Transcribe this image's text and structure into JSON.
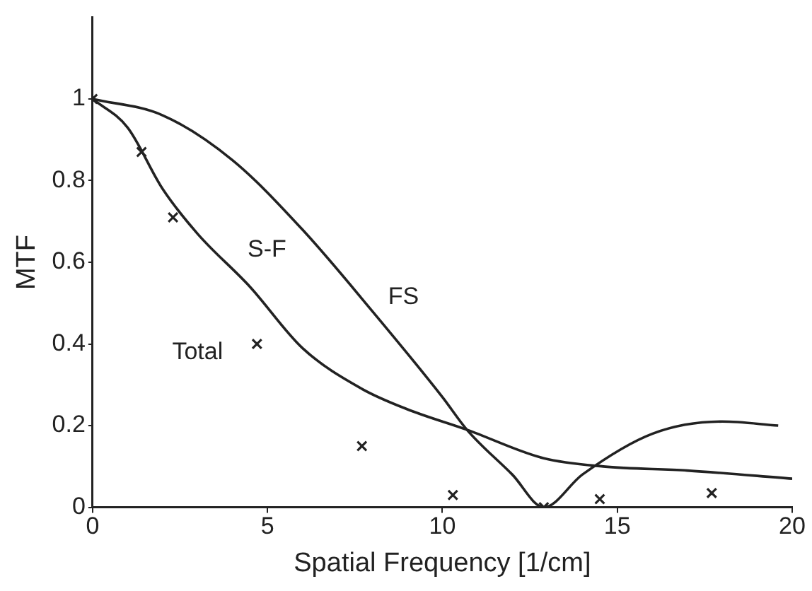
{
  "chart_data": {
    "type": "line",
    "xlabel": "Spatial Frequency [1/cm]",
    "ylabel": "MTF",
    "xlim": [
      0,
      20
    ],
    "xticks": [
      0,
      5,
      10,
      15,
      20
    ],
    "ylim": [
      0,
      1.2
    ],
    "yticks": [
      0,
      0.2,
      0.4,
      0.6,
      0.8,
      1
    ],
    "grid": false,
    "legend": false,
    "series": [
      {
        "name": "FS",
        "color": "#222222",
        "x": [
          0,
          2,
          4,
          6,
          8,
          10,
          10.7,
          12,
          12.9,
          14,
          16,
          18,
          19.6
        ],
        "values": [
          1,
          0.96,
          0.85,
          0.68,
          0.48,
          0.27,
          0.19,
          0.08,
          0,
          0.08,
          0.18,
          0.21,
          0.2
        ]
      },
      {
        "name": "S-F",
        "color": "#222222",
        "x": [
          0,
          1,
          2,
          3,
          4.5,
          6,
          7.7,
          9,
          10.7,
          12.9,
          14.6,
          17,
          20
        ],
        "values": [
          1,
          0.93,
          0.78,
          0.67,
          0.54,
          0.39,
          0.29,
          0.24,
          0.19,
          0.12,
          0.1,
          0.09,
          0.07
        ]
      },
      {
        "name": "Total",
        "type": "scatter",
        "color": "#222222",
        "marker": "cross",
        "x": [
          0,
          1.4,
          2.3,
          4.7,
          7.7,
          10.3,
          12.9,
          14.5,
          17.7
        ],
        "values": [
          1,
          0.87,
          0.71,
          0.4,
          0.15,
          0.03,
          0,
          0.02,
          0.035
        ]
      }
    ]
  }
}
